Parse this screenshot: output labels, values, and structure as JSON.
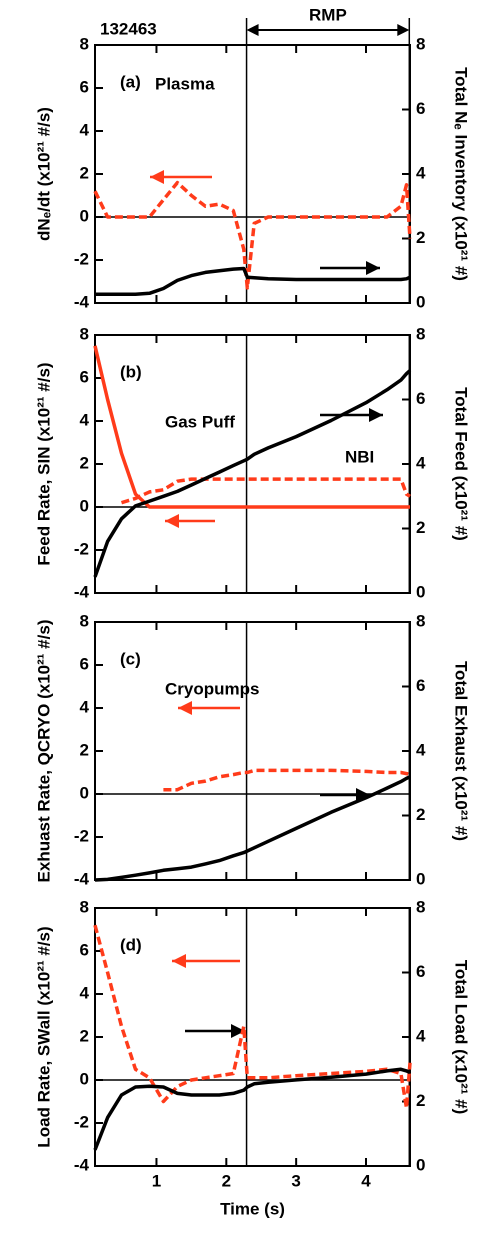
{
  "chart_data": [
    {
      "type": "line",
      "title": "132463",
      "span": [
        2.29,
        4.62
      ],
      "span_label": "RMP",
      "panel_label": "(a)",
      "annotations": [
        "Plasma"
      ],
      "ylabel": "dNₑ/dt (x10²¹ #/s)",
      "y2label": "Total Nₑ Inventory (x10²¹ #)",
      "x": [
        0.12,
        0.3,
        0.5,
        0.7,
        0.9,
        1.1,
        1.3,
        1.5,
        1.7,
        1.9,
        2.1,
        2.25,
        2.3,
        2.4,
        2.6,
        3,
        3.5,
        4,
        4.3,
        4.5,
        4.58,
        4.63
      ],
      "xlim": [
        0.12,
        4.63
      ],
      "xticks": [
        1,
        2,
        3,
        4
      ],
      "xtick_labels": false,
      "ylim": [
        -4,
        8
      ],
      "yticks": [
        -4,
        -2,
        0,
        2,
        4,
        6,
        8
      ],
      "y2lim": [
        0,
        8
      ],
      "y2ticks": [
        0,
        2,
        4,
        6,
        8
      ],
      "zero_line": true,
      "series": [
        {
          "color": "#ff3b1a",
          "dash": true,
          "values": [
            1.2,
            0,
            0,
            0,
            0,
            0.8,
            1.6,
            1.0,
            0.5,
            0.6,
            0.3,
            -1.5,
            -3.3,
            -0.3,
            0,
            0,
            0,
            0,
            0,
            0.5,
            1.5,
            -1.0
          ]
        },
        {
          "color": "#000000",
          "dash": false,
          "axis": "y2",
          "values": [
            0.27,
            0.27,
            0.27,
            0.27,
            0.3,
            0.45,
            0.7,
            0.85,
            0.95,
            1.0,
            1.05,
            1.07,
            0.8,
            0.78,
            0.75,
            0.73,
            0.73,
            0.73,
            0.73,
            0.73,
            0.75,
            0.8
          ]
        }
      ]
    },
    {
      "type": "line",
      "panel_label": "(b)",
      "annotations": [
        "Gas Puff",
        "NBI"
      ],
      "ylabel": "Feed Rate, SIN (x10²¹ #/s)",
      "y2label": "Total Feed (x10²¹ #)",
      "x": [
        0.12,
        0.3,
        0.5,
        0.7,
        0.9,
        1.1,
        1.3,
        1.5,
        1.7,
        1.9,
        2.1,
        2.25,
        2.3,
        2.4,
        2.6,
        3,
        3.5,
        4,
        4.3,
        4.5,
        4.58,
        4.63
      ],
      "xlim": [
        0.12,
        4.63
      ],
      "xticks": [
        1,
        2,
        3,
        4
      ],
      "xtick_labels": false,
      "ylim": [
        -4,
        8
      ],
      "yticks": [
        -4,
        -2,
        0,
        2,
        4,
        6,
        8
      ],
      "y2lim": [
        0,
        8
      ],
      "y2ticks": [
        0,
        2,
        4,
        6,
        8
      ],
      "zero_line": true,
      "series": [
        {
          "color": "#ff3b1a",
          "dash": false,
          "values": [
            7.5,
            5,
            2.5,
            0.6,
            0,
            0,
            0,
            0,
            0,
            0,
            0,
            0,
            0,
            0,
            0,
            0,
            0,
            0,
            0,
            0,
            0,
            0
          ]
        },
        {
          "color": "#ff3b1a",
          "dash": true,
          "values": [
            null,
            null,
            0.2,
            0.4,
            0.7,
            0.8,
            1.2,
            1.3,
            1.3,
            1.3,
            1.3,
            1.3,
            1.3,
            1.3,
            1.3,
            1.3,
            1.3,
            1.3,
            1.3,
            1.3,
            0.6,
            0.5
          ]
        },
        {
          "color": "#000000",
          "dash": false,
          "axis": "y2",
          "values": [
            0.5,
            1.6,
            2.3,
            2.7,
            2.85,
            3.0,
            3.15,
            3.35,
            3.55,
            3.75,
            3.95,
            4.1,
            4.15,
            4.3,
            4.5,
            4.85,
            5.35,
            5.9,
            6.3,
            6.6,
            6.8,
            6.9
          ]
        }
      ]
    },
    {
      "type": "line",
      "panel_label": "(c)",
      "annotations": [
        "Cryopumps"
      ],
      "ylabel": "Exhuast Rate, QCRYO (x10²¹ #/s)",
      "y2label": "Total Exhaust (x10²¹ #)",
      "x": [
        0.12,
        0.3,
        0.5,
        0.7,
        0.9,
        1.1,
        1.3,
        1.5,
        1.7,
        1.9,
        2.1,
        2.25,
        2.3,
        2.4,
        2.6,
        3,
        3.5,
        4,
        4.3,
        4.5,
        4.58,
        4.63
      ],
      "xlim": [
        0.12,
        4.63
      ],
      "xticks": [
        1,
        2,
        3,
        4
      ],
      "xtick_labels": false,
      "ylim": [
        -4,
        8
      ],
      "yticks": [
        -4,
        -2,
        0,
        2,
        4,
        6,
        8
      ],
      "y2lim": [
        0,
        8
      ],
      "y2ticks": [
        0,
        2,
        4,
        6,
        8
      ],
      "zero_line": true,
      "series": [
        {
          "color": "#ff3b1a",
          "dash": true,
          "values": [
            null,
            null,
            null,
            null,
            null,
            0.2,
            0.2,
            0.5,
            0.6,
            0.8,
            0.9,
            1.0,
            1.0,
            1.1,
            1.1,
            1.1,
            1.1,
            1.05,
            1.0,
            1.0,
            0.95,
            0.9
          ]
        },
        {
          "color": "#000000",
          "dash": false,
          "axis": "y2",
          "values": [
            0,
            0.02,
            0.08,
            0.15,
            0.22,
            0.3,
            0.35,
            0.4,
            0.5,
            0.6,
            0.75,
            0.85,
            0.9,
            1.0,
            1.2,
            1.6,
            2.1,
            2.55,
            2.85,
            3.05,
            3.15,
            3.2
          ]
        }
      ]
    },
    {
      "type": "line",
      "panel_label": "(d)",
      "annotations": [],
      "ylabel": "Load Rate, SWall (x10²¹ #/s)",
      "y2label": "Total Load (x10²¹ #)",
      "xlabel": "Time (s)",
      "x": [
        0.12,
        0.3,
        0.5,
        0.7,
        0.9,
        1.1,
        1.3,
        1.5,
        1.7,
        1.9,
        2.1,
        2.25,
        2.3,
        2.4,
        2.6,
        3,
        3.5,
        4,
        4.3,
        4.5,
        4.58,
        4.63
      ],
      "xlim": [
        0.12,
        4.63
      ],
      "xticks": [
        1,
        2,
        3,
        4
      ],
      "xtick_labels": true,
      "ylim": [
        -4,
        8
      ],
      "yticks": [
        -4,
        -2,
        0,
        2,
        4,
        6,
        8
      ],
      "y2lim": [
        0,
        8
      ],
      "y2ticks": [
        0,
        2,
        4,
        6,
        8
      ],
      "zero_line": true,
      "series": [
        {
          "color": "#ff3b1a",
          "dash": true,
          "values": [
            7.2,
            5,
            2.5,
            0.5,
            0.1,
            -1,
            -0.3,
            0,
            0.1,
            0.2,
            0.3,
            2.5,
            0.1,
            0.1,
            0.1,
            0.2,
            0.3,
            0.4,
            0.5,
            0.3,
            -1.3,
            0.8
          ]
        },
        {
          "color": "#000000",
          "dash": false,
          "axis": "y2",
          "values": [
            0.5,
            1.5,
            2.2,
            2.45,
            2.47,
            2.45,
            2.25,
            2.2,
            2.2,
            2.2,
            2.25,
            2.35,
            2.45,
            2.55,
            2.6,
            2.67,
            2.75,
            2.85,
            2.95,
            3.0,
            2.95,
            2.9
          ]
        }
      ]
    }
  ]
}
